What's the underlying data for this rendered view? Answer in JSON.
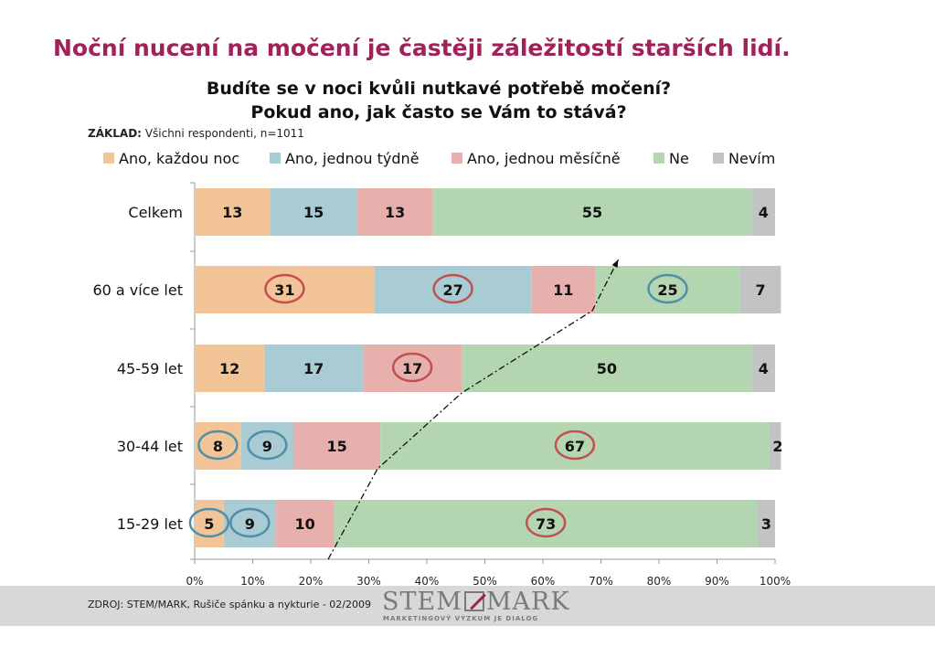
{
  "headline": "Noční nucení na močení je častěji záležitostí starších lidí.",
  "question_line1": "Budíte se v noci kvůli nutkavé potřebě močení?",
  "question_line2": "Pokud ano, jak často se Vám to stává?",
  "base_label": "ZÁKLAD:",
  "base_text": "Všichni respondenti, n=1011",
  "source": "ZDROJ: STEM/MARK, Rušiče spánku a nykturie -  02/2009",
  "logo": {
    "word_left": "STEM",
    "word_right": "MARK",
    "tagline": "MARKETINGOVÝ VÝZKUM JE DIALOG"
  },
  "colors": {
    "headline": "#a0225a",
    "series": [
      "#f2c497",
      "#a9cbd3",
      "#e8b0ac",
      "#b3d6b1",
      "#c3c3c3"
    ],
    "circle_blue": "#4f90a6",
    "circle_red": "#c25052",
    "footer_bg": "#d8d8d8"
  },
  "chart_data": {
    "type": "bar",
    "orientation": "horizontal",
    "stacked": true,
    "categories": [
      "Celkem",
      "60 a více let",
      "45-59 let",
      "30-44 let",
      "15-29 let"
    ],
    "series": [
      {
        "name": "Ano, každou noc",
        "values": [
          13,
          31,
          12,
          8,
          5
        ]
      },
      {
        "name": "Ano, jednou týdně",
        "values": [
          15,
          27,
          17,
          9,
          9
        ]
      },
      {
        "name": "Ano, jednou měsíčně",
        "values": [
          13,
          11,
          17,
          15,
          10
        ]
      },
      {
        "name": "Ne",
        "values": [
          55,
          25,
          50,
          67,
          73
        ]
      },
      {
        "name": "Nevím",
        "values": [
          4,
          7,
          4,
          2,
          3
        ]
      }
    ],
    "x_ticks": [
      "0%",
      "10%",
      "20%",
      "30%",
      "40%",
      "50%",
      "60%",
      "70%",
      "80%",
      "90%",
      "100%"
    ],
    "xlim": [
      0,
      100
    ],
    "legend": "top",
    "grid": false,
    "highlight_circles": [
      {
        "category": "60 a více let",
        "series": "Ano, každou noc",
        "color": "red"
      },
      {
        "category": "60 a více let",
        "series": "Ano, jednou týdně",
        "color": "red"
      },
      {
        "category": "60 a více let",
        "series": "Ne",
        "color": "blue"
      },
      {
        "category": "45-59 let",
        "series": "Ano, jednou měsíčně",
        "color": "red"
      },
      {
        "category": "30-44 let",
        "series": "Ano, každou noc",
        "color": "blue"
      },
      {
        "category": "30-44 let",
        "series": "Ano, jednou týdně",
        "color": "blue"
      },
      {
        "category": "30-44 let",
        "series": "Ne",
        "color": "red"
      },
      {
        "category": "15-29 let",
        "series": "Ano, každou noc",
        "color": "blue"
      },
      {
        "category": "15-29 let",
        "series": "Ano, jednou týdně",
        "color": "blue"
      },
      {
        "category": "15-29 let",
        "series": "Ne",
        "color": "red"
      }
    ],
    "trend_arrow": {
      "style": "dash-dot",
      "points": [
        [
          23,
          "15-29 let",
          "below"
        ],
        [
          31.5,
          "30-44 let",
          "between-below"
        ],
        [
          46,
          "45-59 let",
          "between-below"
        ],
        [
          68.5,
          "60 a více let",
          "bottom"
        ],
        [
          73,
          "60 a více let",
          "above"
        ]
      ]
    }
  }
}
